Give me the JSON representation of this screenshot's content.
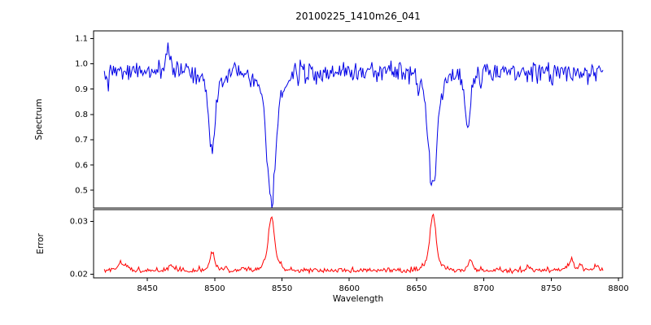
{
  "figure": {
    "background": "#ffffff"
  },
  "chart_data": {
    "type": "line",
    "title": "20100225_1410m26_041",
    "xlabel": "Wavelength",
    "xlim": [
      8410,
      8803
    ],
    "x_data_range": [
      8418,
      8789
    ],
    "x_step": 0.75,
    "grid": false,
    "legend": null,
    "x_ticks": [
      {
        "v": 8450,
        "label": "8450"
      },
      {
        "v": 8500,
        "label": "8500"
      },
      {
        "v": 8550,
        "label": "8550"
      },
      {
        "v": 8600,
        "label": "8600"
      },
      {
        "v": 8650,
        "label": "8650"
      },
      {
        "v": 8700,
        "label": "8700"
      },
      {
        "v": 8750,
        "label": "8750"
      },
      {
        "v": 8800,
        "label": "8800"
      }
    ],
    "panels": [
      {
        "name": "spectrum",
        "ylabel": "Spectrum",
        "color": "#0000e6",
        "ylim": [
          0.43,
          1.13
        ],
        "y_ticks": [
          {
            "v": 0.5,
            "label": "0.5"
          },
          {
            "v": 0.6,
            "label": "0.6"
          },
          {
            "v": 0.7,
            "label": "0.7"
          },
          {
            "v": 0.8,
            "label": "0.8"
          },
          {
            "v": 0.9,
            "label": "0.9"
          },
          {
            "v": 1.0,
            "label": "1.0"
          },
          {
            "v": 1.1,
            "label": "1.1"
          }
        ],
        "baseline": 0.99,
        "noise_sigma": 0.011,
        "noise_skew": 0.028,
        "seed": 42,
        "features": [
          {
            "center": 8465.0,
            "sigma": 1.2,
            "amp": 0.12,
            "note": "emission spike ~1.09"
          },
          {
            "center": 8498.0,
            "sigma": 2.2,
            "amp": -0.31,
            "note": "Ca II absorption, depth to ~0.66"
          },
          {
            "center": 8542.1,
            "sigma": 3.0,
            "amp": -0.5,
            "note": "Ca II absorption, depth to ~0.47"
          },
          {
            "center": 8662.1,
            "sigma": 2.8,
            "amp": -0.46,
            "note": "Ca II absorption, depth to ~0.51"
          },
          {
            "center": 8688.0,
            "sigma": 1.8,
            "amp": -0.24,
            "note": "absorption, depth to ~0.73"
          }
        ]
      },
      {
        "name": "error",
        "ylabel": "Error",
        "color": "#ff0000",
        "ylim": [
          0.0193,
          0.0322
        ],
        "y_ticks": [
          {
            "v": 0.02,
            "label": "0.02"
          },
          {
            "v": 0.03,
            "label": "0.03"
          }
        ],
        "baseline": 0.0205,
        "noise_sigma": 0.00015,
        "noise_skew": -0.0003,
        "seed": 7,
        "features": [
          {
            "center": 8430.0,
            "sigma": 1.6,
            "amp": 0.0013
          },
          {
            "center": 8434.0,
            "sigma": 1.0,
            "amp": 0.0009
          },
          {
            "center": 8468.0,
            "sigma": 1.4,
            "amp": 0.0009
          },
          {
            "center": 8498.0,
            "sigma": 1.6,
            "amp": 0.0032
          },
          {
            "center": 8508.0,
            "sigma": 1.0,
            "amp": 0.0009
          },
          {
            "center": 8521.0,
            "sigma": 1.0,
            "amp": 0.0007
          },
          {
            "center": 8542.1,
            "sigma": 2.0,
            "amp": 0.01
          },
          {
            "center": 8662.1,
            "sigma": 2.0,
            "amp": 0.0106
          },
          {
            "center": 8690.0,
            "sigma": 1.5,
            "amp": 0.0019
          },
          {
            "center": 8733.0,
            "sigma": 1.0,
            "amp": 0.0006
          },
          {
            "center": 8765.0,
            "sigma": 1.5,
            "amp": 0.0019
          },
          {
            "center": 8772.0,
            "sigma": 1.0,
            "amp": 0.001
          },
          {
            "center": 8783.0,
            "sigma": 1.0,
            "amp": 0.0011
          }
        ]
      }
    ]
  }
}
